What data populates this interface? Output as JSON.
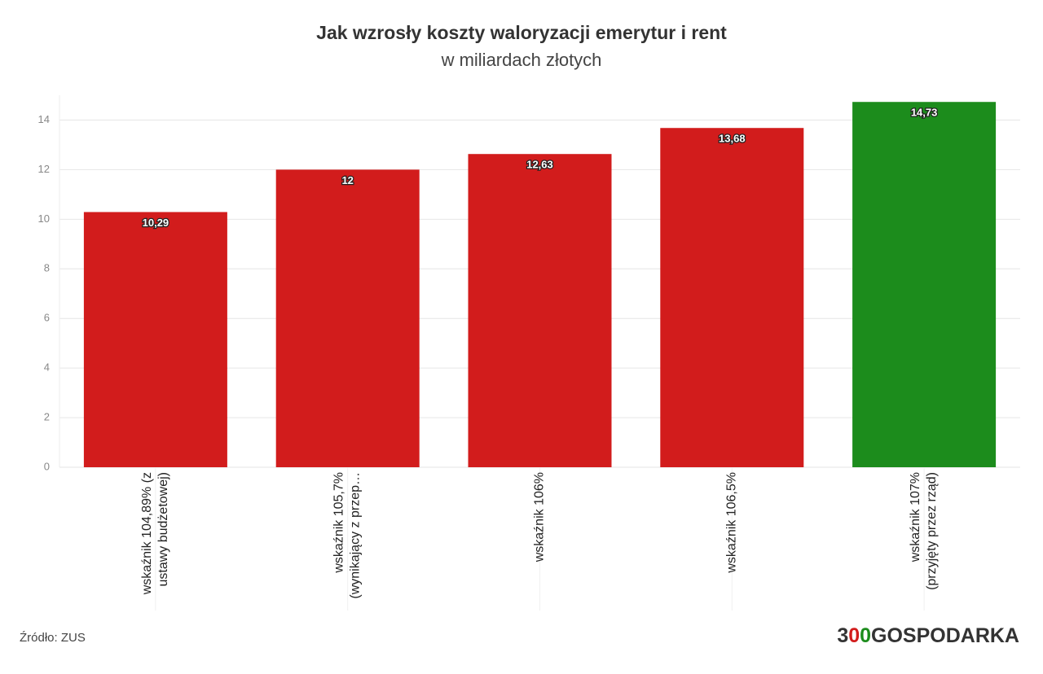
{
  "chart_data": {
    "type": "bar",
    "title": "Jak wzrosły koszty waloryzacji emerytur i rent",
    "subtitle": "w miliardach złotych",
    "categories": [
      "wskaźnik 104,89% (z\nustawy budżetowej)",
      "wskaźnik 105,7%\n(wynikający z przep…",
      "wskaźnik 106%",
      "wskaźnik 106,5%",
      "wskaźnik 107%\n(przyjęty przez rząd)"
    ],
    "values": [
      10.29,
      12,
      12.63,
      13.68,
      14.73
    ],
    "value_labels": [
      "10,29",
      "12",
      "12,63",
      "13,68",
      "14,73"
    ],
    "colors": [
      "#d21c1c",
      "#d21c1c",
      "#d21c1c",
      "#d21c1c",
      "#1c8c1c"
    ],
    "ylim": [
      0,
      15
    ],
    "yticks": [
      0,
      2,
      4,
      6,
      8,
      10,
      12,
      14
    ],
    "grid": true,
    "source": "Źródło: ZUS",
    "logo": "300GOSPODARKA"
  }
}
